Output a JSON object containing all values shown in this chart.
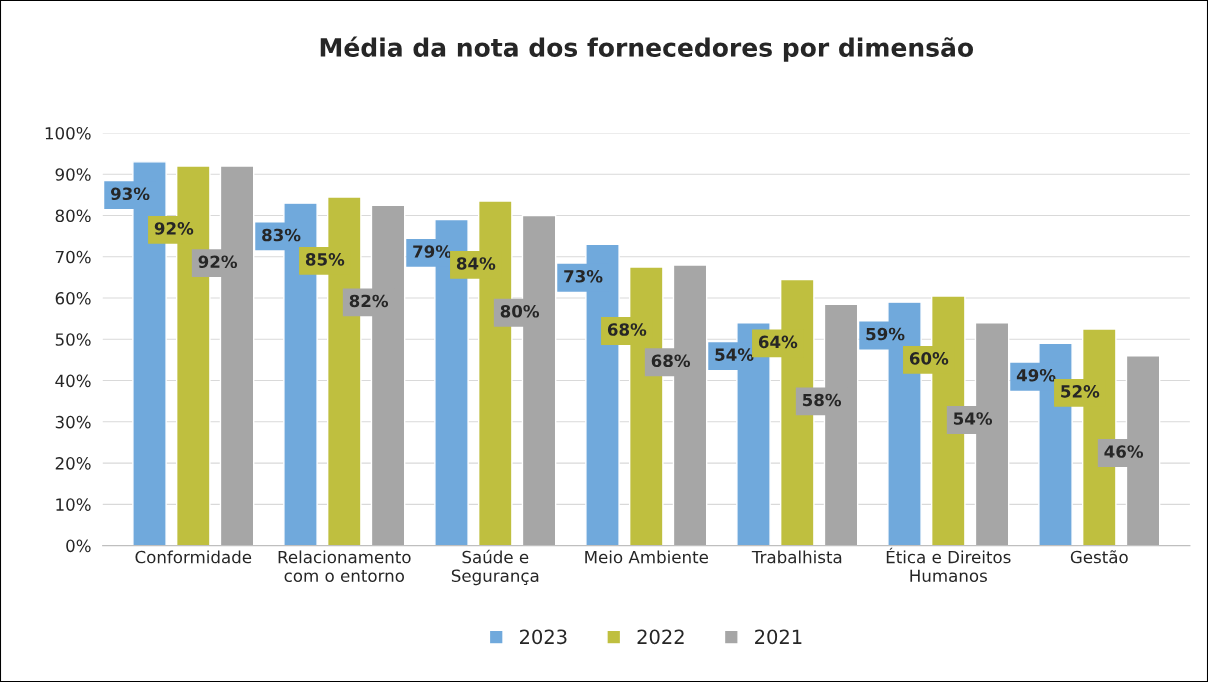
{
  "chart_data": {
    "type": "bar",
    "title": "Média da nota dos fornecedores por dimensão",
    "categories": [
      "Conformidade",
      "Relacionamento\ncom o entorno",
      "Saúde e\nSegurança",
      "Meio Ambiente",
      "Trabalhista",
      "Ética e Direitos\nHumanos",
      "Gestão"
    ],
    "series": [
      {
        "name": "2023",
        "color": "#70a9dc",
        "values": [
          93,
          83,
          79,
          73,
          54,
          59,
          49
        ],
        "value_labels": [
          "93%",
          "83%",
          "79%",
          "73%",
          "54%",
          "59%",
          "49%"
        ]
      },
      {
        "name": "2022",
        "color": "#bfbf3f",
        "values": [
          92,
          84.5,
          83.5,
          67.5,
          64.5,
          60.5,
          52.5
        ],
        "value_labels": [
          "92%",
          "85%",
          "84%",
          "68%",
          "64%",
          "60%",
          "52%"
        ]
      },
      {
        "name": "2021",
        "color": "#a6a6a6",
        "values": [
          92,
          82.5,
          80,
          68,
          58.5,
          54,
          46
        ],
        "value_labels": [
          "92%",
          "82%",
          "80%",
          "68%",
          "58%",
          "54%",
          "46%"
        ]
      }
    ],
    "ylim": [
      0,
      100
    ],
    "yticks": [
      {
        "value": 0,
        "label": "0%"
      },
      {
        "value": 10,
        "label": "10%"
      },
      {
        "value": 20,
        "label": "20%"
      },
      {
        "value": 30,
        "label": "30%"
      },
      {
        "value": 40,
        "label": "40%"
      },
      {
        "value": 50,
        "label": "50%"
      },
      {
        "value": 60,
        "label": "60%"
      },
      {
        "value": 70,
        "label": "70%"
      },
      {
        "value": 80,
        "label": "80%"
      },
      {
        "value": 90,
        "label": "90%"
      },
      {
        "value": 100,
        "label": "100%"
      }
    ],
    "grid": "y",
    "legend": "bottom"
  }
}
